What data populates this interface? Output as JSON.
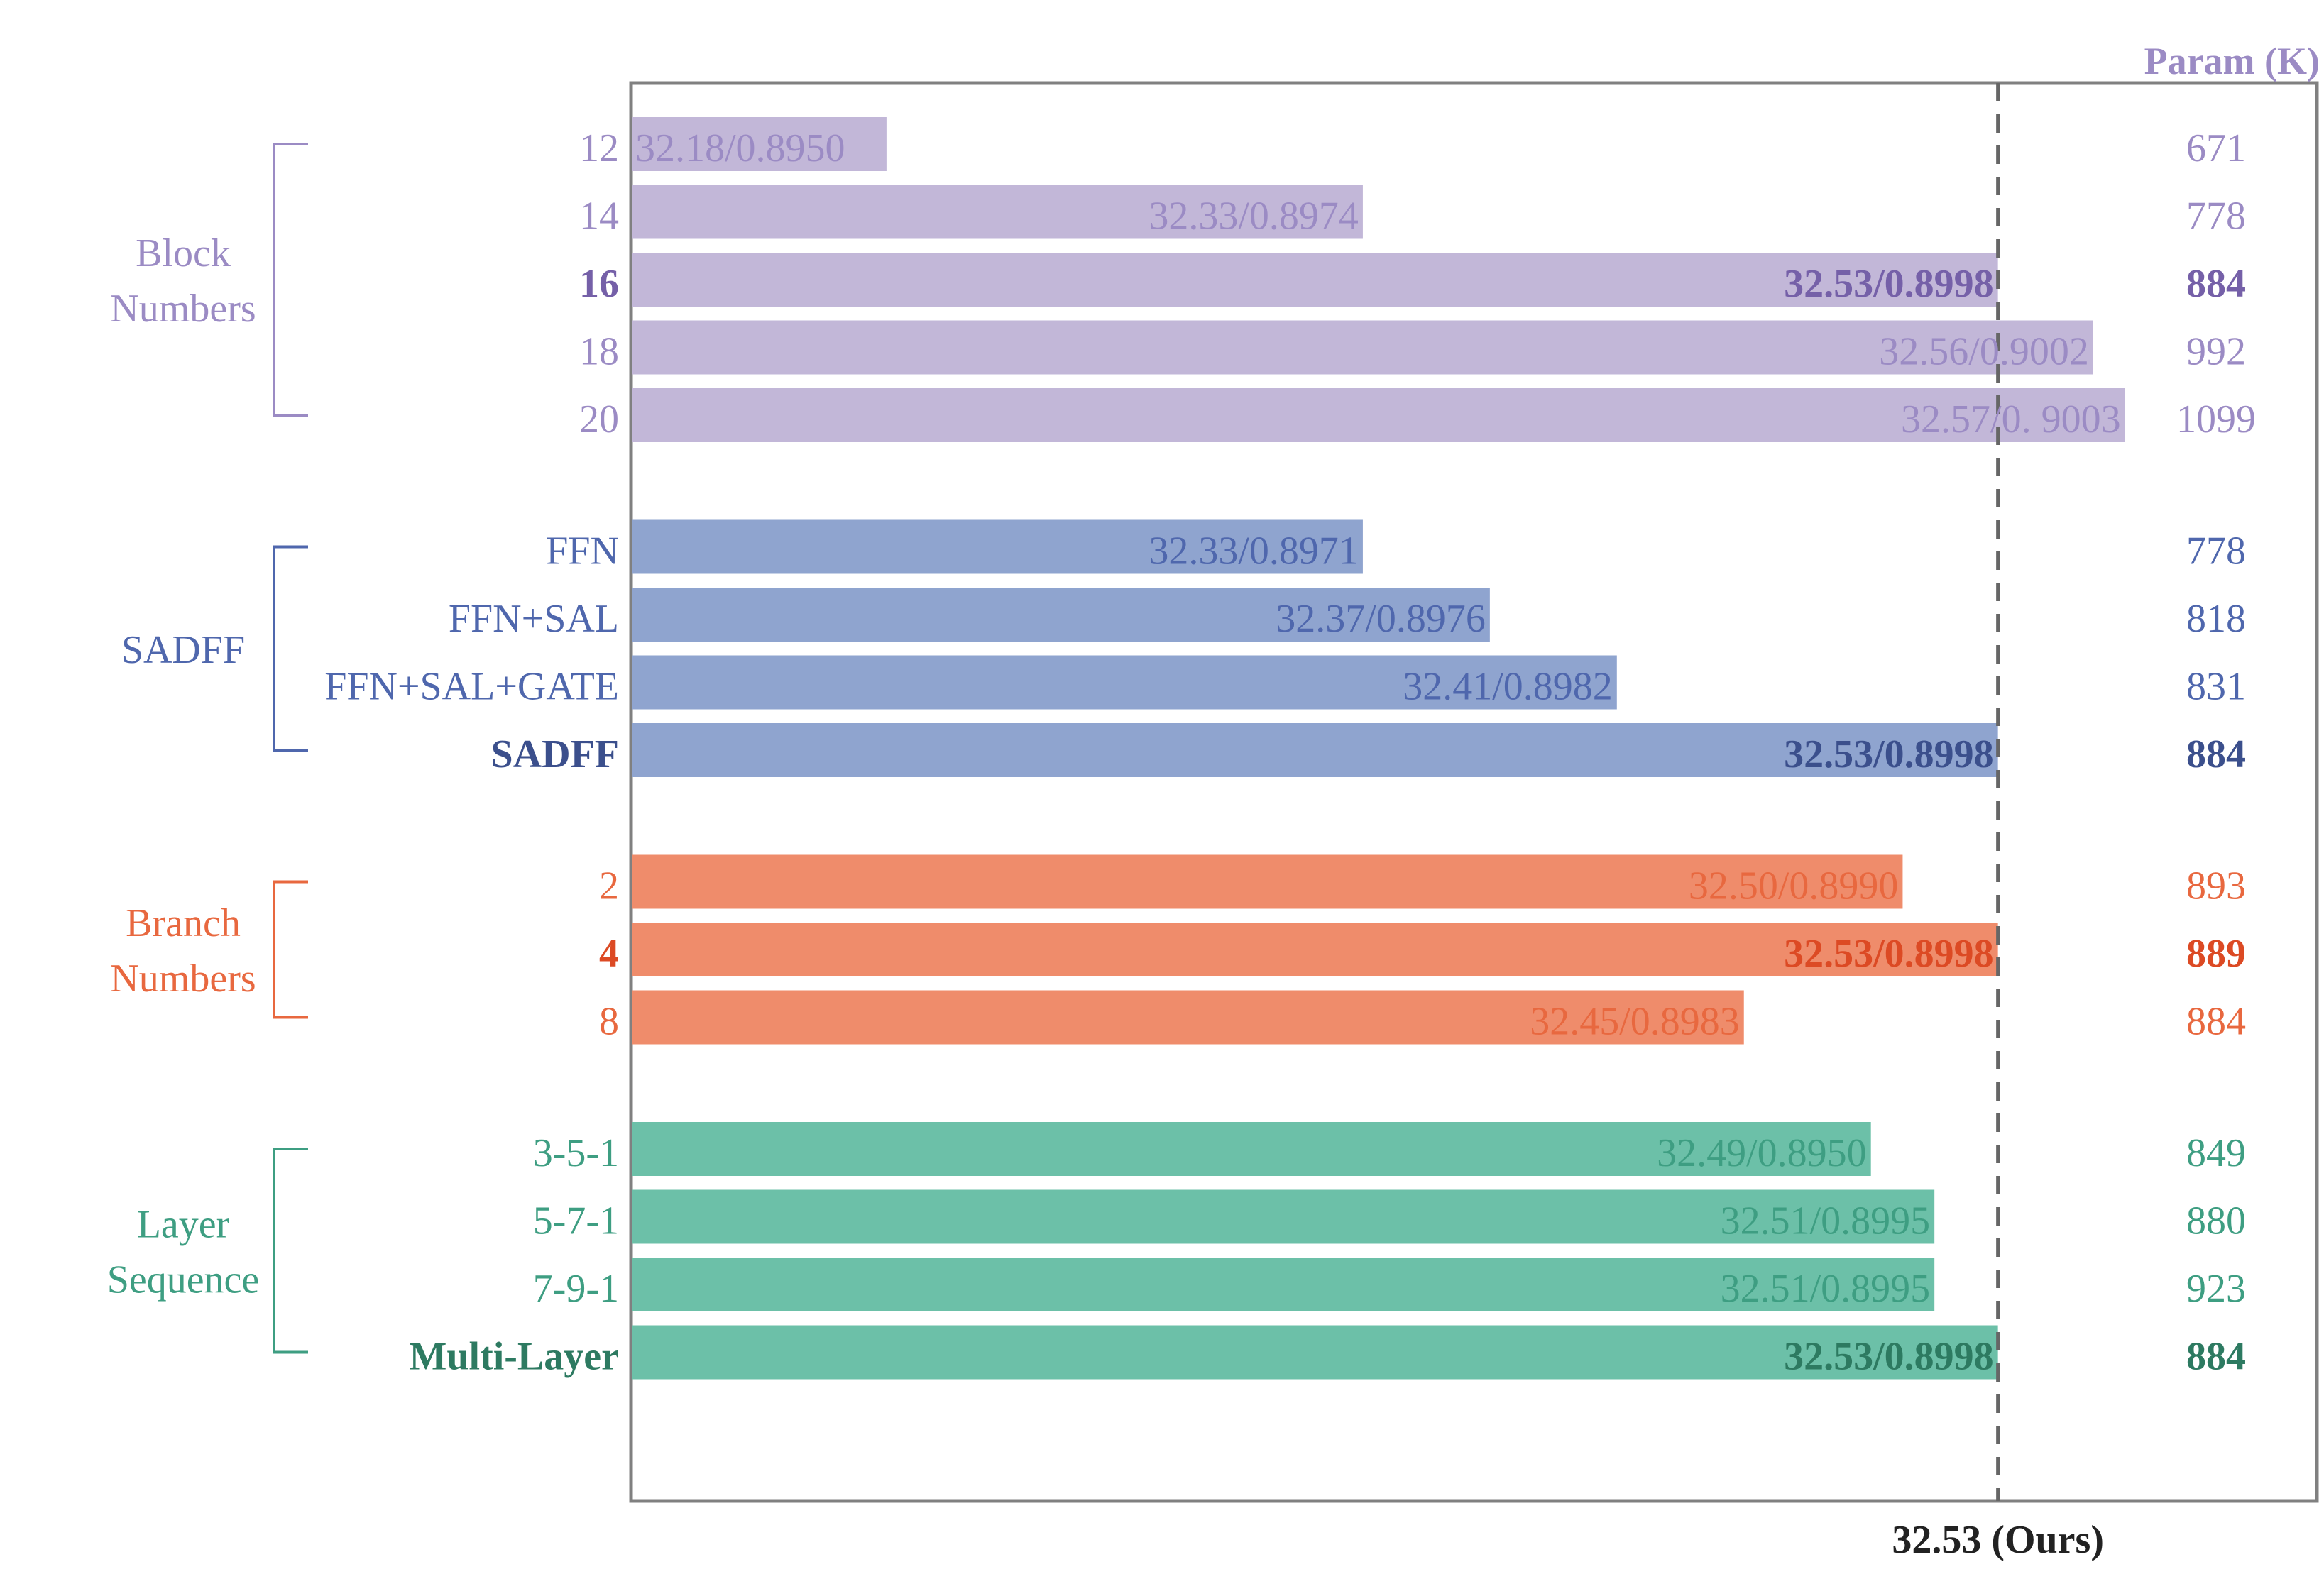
{
  "colors": {
    "frame": "#808080",
    "ref_line": "#666666",
    "black": "#222222"
  },
  "header": {
    "param_label": "Param (K)"
  },
  "reference": {
    "label": "32.53 (Ours)",
    "psnr": 32.53
  },
  "chart_data": {
    "type": "bar",
    "orientation": "horizontal",
    "metric": "PSNR/SSIM",
    "xlim": [
      32.1,
      32.63
    ],
    "groups": [
      {
        "label_lines": [
          "Block",
          "Numbers"
        ],
        "bar_color": "#c2b7d8",
        "text_color": "#9b8bc4",
        "bold_color": "#7560a8",
        "rows": [
          {
            "label": "12",
            "psnr": 32.18,
            "value_label": "32.18/0.8950",
            "param": "671",
            "bold": false
          },
          {
            "label": "14",
            "psnr": 32.33,
            "value_label": "32.33/0.8974",
            "param": "778",
            "bold": false
          },
          {
            "label": "16",
            "psnr": 32.53,
            "value_label": "32.53/0.8998",
            "param": "884",
            "bold": true
          },
          {
            "label": "18",
            "psnr": 32.56,
            "value_label": "32.56/0.9002",
            "param": "992",
            "bold": false
          },
          {
            "label": "20",
            "psnr": 32.57,
            "value_label": "32.57/0. 9003",
            "param": "1099",
            "bold": false
          }
        ]
      },
      {
        "label_lines": [
          "SADFF"
        ],
        "bar_color": "#8fa4cf",
        "text_color": "#4f67ad",
        "bold_color": "#3b4f8c",
        "rows": [
          {
            "label": "FFN",
            "psnr": 32.33,
            "value_label": "32.33/0.8971",
            "param": "778",
            "bold": false
          },
          {
            "label": "FFN+SAL",
            "psnr": 32.37,
            "value_label": "32.37/0.8976",
            "param": "818",
            "bold": false
          },
          {
            "label": "FFN+SAL+GATE",
            "psnr": 32.41,
            "value_label": "32.41/0.8982",
            "param": "831",
            "bold": false
          },
          {
            "label": "SADFF",
            "psnr": 32.53,
            "value_label": "32.53/0.8998",
            "param": "884",
            "bold": true
          }
        ]
      },
      {
        "label_lines": [
          "Branch",
          "Numbers"
        ],
        "bar_color": "#ef8c6b",
        "text_color": "#e8683f",
        "bold_color": "#dc4a24",
        "rows": [
          {
            "label": "2",
            "psnr": 32.5,
            "value_label": "32.50/0.8990",
            "param": "893",
            "bold": false
          },
          {
            "label": "4",
            "psnr": 32.53,
            "value_label": "32.53/0.8998",
            "param": "889",
            "bold": true
          },
          {
            "label": "8",
            "psnr": 32.45,
            "value_label": "32.45/0.8983",
            "param": "884",
            "bold": false
          }
        ]
      },
      {
        "label_lines": [
          "Layer",
          "Sequence"
        ],
        "bar_color": "#6cc0a8",
        "text_color": "#3e9e82",
        "bold_color": "#2d7a61",
        "rows": [
          {
            "label": "3-5-1",
            "psnr": 32.49,
            "value_label": "32.49/0.8950",
            "param": "849",
            "bold": false
          },
          {
            "label": "5-7-1",
            "psnr": 32.51,
            "value_label": "32.51/0.8995",
            "param": "880",
            "bold": false
          },
          {
            "label": "7-9-1",
            "psnr": 32.51,
            "value_label": "32.51/0.8995",
            "param": "923",
            "bold": false
          },
          {
            "label": "Multi-Layer",
            "psnr": 32.53,
            "value_label": "32.53/0.8998",
            "param": "884",
            "bold": true
          }
        ]
      }
    ]
  }
}
